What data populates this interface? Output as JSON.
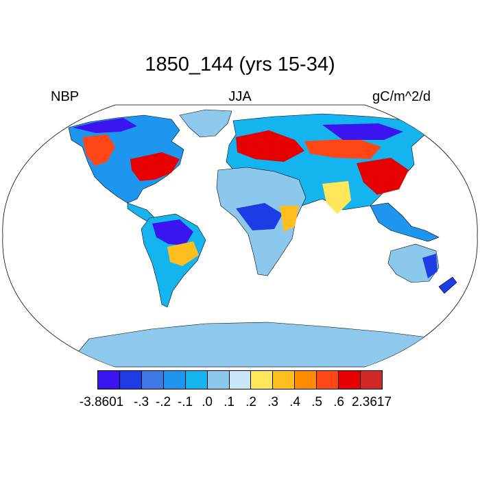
{
  "title": "1850_144 (yrs 15-34)",
  "left_label": "NBP",
  "center_label": "JJA",
  "right_label": "gC/m^2/d",
  "colors": {
    "ocean": "#ffffff",
    "outline": "#000000",
    "antarctica": "#8ec8ec",
    "greenland": "#8ec8ec"
  },
  "colorbar": {
    "colors": [
      "#3c14f0",
      "#1e3ce6",
      "#3c78e6",
      "#1e96f0",
      "#14b4f0",
      "#8cc8ec",
      "#c8e6f8",
      "#ffe65a",
      "#ffbe1e",
      "#ff8c00",
      "#ff4614",
      "#e60000",
      "#d22828"
    ],
    "labels": [
      "-3.8601",
      "-.3",
      "-.2",
      "-.1",
      ".0",
      ".1",
      ".2",
      ".3",
      ".4",
      ".5",
      ".6",
      "2.3617"
    ]
  }
}
